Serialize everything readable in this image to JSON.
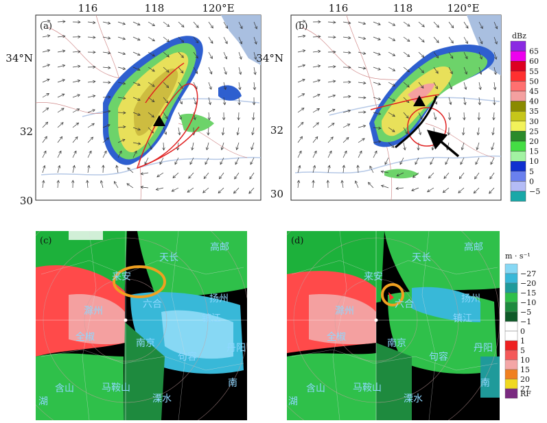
{
  "panels": {
    "a": {
      "label": "(a)",
      "lon_ticks": [
        "116",
        "118",
        "120°E"
      ],
      "lat_ticks": [
        "34°N",
        "32",
        "30"
      ]
    },
    "b": {
      "label": "(b)",
      "lon_ticks": [
        "116",
        "118",
        "120°E"
      ],
      "lat_ticks": [
        "34°N",
        "32",
        "30"
      ]
    },
    "c": {
      "label": "(c)"
    },
    "d": {
      "label": "(d)"
    }
  },
  "cities": [
    "高邮",
    "天长",
    "扬州",
    "来安",
    "六合",
    "滁州",
    "镇江",
    "全椒",
    "南京",
    "句容",
    "含山",
    "马鞍山",
    "溧水",
    "丹阳",
    "湖",
    "南"
  ],
  "colorbar_dbz": {
    "unit": "dBz",
    "labels": [
      "65",
      "60",
      "55",
      "50",
      "45",
      "40",
      "35",
      "30",
      "25",
      "20",
      "15",
      "10",
      "5",
      "0",
      "−5"
    ],
    "colors": [
      "#8a2be2",
      "#ee00ee",
      "#dd0022",
      "#ff3030",
      "#ff7070",
      "#f4a0a0",
      "#8a8a00",
      "#c6c61a",
      "#f2f25a",
      "#2a8a2a",
      "#44dd44",
      "#a2f2a2",
      "#1030d0",
      "#6a80ee",
      "#b4bcf6",
      "#18a8a8"
    ]
  },
  "colorbar_vel": {
    "unit": "m · s⁻¹",
    "labels": [
      "−27",
      "−20",
      "−15",
      "−10",
      "−5",
      "−1",
      "0",
      "1",
      "5",
      "10",
      "15",
      "20",
      "27",
      "RF"
    ],
    "colors": [
      "#87d8f4",
      "#38b8d8",
      "#1f9a9a",
      "#2fc04a",
      "#1e8a3e",
      "#0e5a28",
      "#ffffff",
      "#ffffff",
      "#ee2222",
      "#f45a5a",
      "#f4a6a6",
      "#f08020",
      "#f0d820",
      "#7a2a80"
    ]
  }
}
